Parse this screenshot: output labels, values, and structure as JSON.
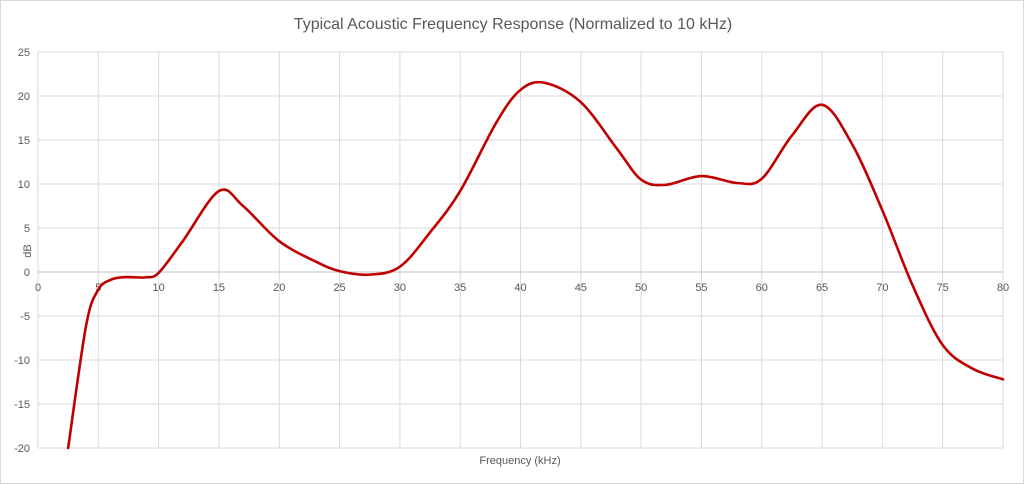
{
  "chart_data": {
    "type": "line",
    "title": "Typical Acoustic Frequency Response (Normalized to 10 kHz)",
    "xlabel": "Frequency (kHz)",
    "ylabel": "dB",
    "xlim": [
      0,
      80
    ],
    "ylim": [
      -20,
      25
    ],
    "x_ticks": [
      0,
      5,
      10,
      15,
      20,
      25,
      30,
      35,
      40,
      45,
      50,
      55,
      60,
      65,
      70,
      75,
      80
    ],
    "y_ticks": [
      25,
      20,
      15,
      10,
      5,
      0,
      -5,
      -10,
      -15,
      -20
    ],
    "grid": true,
    "legend": "none",
    "series": [
      {
        "color": "#c00000",
        "x": [
          2.5,
          4,
          5,
          6,
          7,
          8,
          9,
          10,
          12,
          15,
          17,
          20,
          23,
          25,
          27.5,
          30,
          32.5,
          35,
          38,
          40,
          42,
          45,
          48,
          50,
          52,
          55,
          58,
          60,
          62.5,
          65,
          67.5,
          70,
          72.5,
          75,
          77.5,
          80
        ],
        "y": [
          -20,
          -6,
          -2,
          -0.9,
          -0.6,
          -0.6,
          -0.6,
          -0.1,
          3.5,
          9.2,
          7.5,
          3.5,
          1.2,
          0.1,
          -0.3,
          0.6,
          4.5,
          9.2,
          17,
          20.7,
          21.5,
          19.3,
          14,
          10.5,
          9.9,
          10.9,
          10.1,
          10.6,
          15.5,
          19,
          14.5,
          7,
          -1.5,
          -8.3,
          -11,
          -12.2
        ]
      }
    ]
  }
}
